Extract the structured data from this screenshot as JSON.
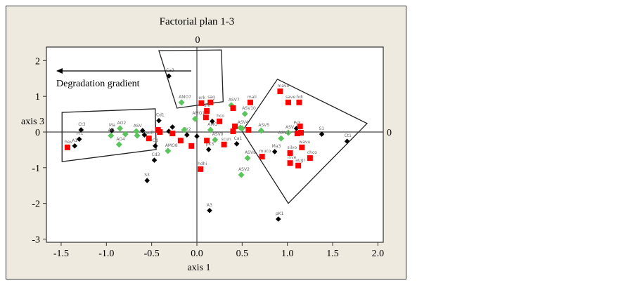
{
  "chart_data": {
    "type": "scatter",
    "title": "Factorial plan 1-3",
    "xlabel": "axis 1",
    "ylabel": "axis 3",
    "xlim": [
      -1.6,
      2.05
    ],
    "ylim": [
      -3.05,
      2.4
    ],
    "xticks": [
      "-1.5",
      "-1.0",
      "-0.5",
      "0.0",
      "0.5",
      "1.0",
      "1.5",
      "2.0"
    ],
    "xtick_values": [
      -1.5,
      -1.0,
      -0.5,
      0.0,
      0.5,
      1.0,
      1.5,
      2.0
    ],
    "yticks": [
      "2",
      "1",
      "0",
      "-1",
      "-2",
      "-3"
    ],
    "ytick_values": [
      2,
      1,
      0,
      -1,
      -2,
      -3
    ],
    "zero_line_labels": {
      "top": "0",
      "right": "0"
    },
    "annotation": "Degradation gradient",
    "colors": {
      "black": "#000000",
      "green": "#5cc45c",
      "red": "#ff0000"
    },
    "series": [
      {
        "name": "black",
        "marker": "diamond",
        "points": [
          {
            "x": -1.28,
            "y": 0.06,
            "label": "Ct3"
          },
          {
            "x": -1.3,
            "y": -0.2,
            "label": "Pr1"
          },
          {
            "x": -1.35,
            "y": -0.39,
            "label": "A1"
          },
          {
            "x": -0.94,
            "y": 0.04,
            "label": "Ma"
          },
          {
            "x": -0.42,
            "y": 0.32,
            "label": "Cd1"
          },
          {
            "x": -0.46,
            "y": -0.39,
            "label": "Cd"
          },
          {
            "x": -0.47,
            "y": -0.79,
            "label": "Cd3"
          },
          {
            "x": -0.55,
            "y": -1.36,
            "label": "S3"
          },
          {
            "x": -0.6,
            "y": 0.04,
            "label": ""
          },
          {
            "x": -0.58,
            "y": -0.08,
            "label": ""
          },
          {
            "x": -0.27,
            "y": 0.14,
            "label": ""
          },
          {
            "x": -0.31,
            "y": 0.02,
            "label": ""
          },
          {
            "x": -0.11,
            "y": -0.08,
            "label": "Pr2"
          },
          {
            "x": 0.0,
            "y": -0.12,
            "label": ""
          },
          {
            "x": 0.13,
            "y": -0.49,
            "label": "pK3"
          },
          {
            "x": 0.17,
            "y": 0.3,
            "label": ""
          },
          {
            "x": -0.31,
            "y": 1.57,
            "label": "Ca3"
          },
          {
            "x": 0.44,
            "y": -0.33,
            "label": "Ca1"
          },
          {
            "x": 0.86,
            "y": -0.55,
            "label": "Ma3"
          },
          {
            "x": 1.1,
            "y": 0.1,
            "label": "Pr3"
          },
          {
            "x": 1.14,
            "y": 0.0,
            "label": ""
          },
          {
            "x": 1.38,
            "y": -0.06,
            "label": "S1"
          },
          {
            "x": 1.66,
            "y": -0.26,
            "label": "Ct1"
          },
          {
            "x": 0.14,
            "y": -2.2,
            "label": "A3"
          },
          {
            "x": 0.9,
            "y": -2.44,
            "label": "pK1"
          }
        ]
      },
      {
        "name": "green",
        "marker": "diamond",
        "points": [
          {
            "x": -0.85,
            "y": 0.1,
            "label": "AO2"
          },
          {
            "x": -0.86,
            "y": -0.35,
            "label": "AO4"
          },
          {
            "x": -0.95,
            "y": -0.1,
            "label": "AO"
          },
          {
            "x": -0.79,
            "y": -0.06,
            "label": ""
          },
          {
            "x": -0.67,
            "y": 0.02,
            "label": "ASV"
          },
          {
            "x": -0.66,
            "y": -0.1,
            "label": ""
          },
          {
            "x": -0.41,
            "y": 0.0,
            "label": ""
          },
          {
            "x": -0.14,
            "y": 0.06,
            "label": ""
          },
          {
            "x": -0.02,
            "y": 0.37,
            "label": "AMO1"
          },
          {
            "x": -0.17,
            "y": 0.83,
            "label": "AMO7"
          },
          {
            "x": -0.32,
            "y": -0.53,
            "label": "AMO8"
          },
          {
            "x": 0.15,
            "y": 0.06,
            "label": "AMO"
          },
          {
            "x": 0.2,
            "y": -0.22,
            "label": "ASV9"
          },
          {
            "x": 0.53,
            "y": 0.51,
            "label": "ASV10"
          },
          {
            "x": 0.71,
            "y": 0.04,
            "label": "ASV5"
          },
          {
            "x": 0.38,
            "y": 0.75,
            "label": "ASV7"
          },
          {
            "x": 0.56,
            "y": -0.73,
            "label": "ASV8"
          },
          {
            "x": 0.49,
            "y": -1.2,
            "label": "ASV2"
          },
          {
            "x": 1.01,
            "y": -0.02,
            "label": "ASV"
          },
          {
            "x": 0.93,
            "y": -0.18,
            "label": "ASV3"
          },
          {
            "x": 0.48,
            "y": 0.12,
            "label": "ASV4"
          },
          {
            "x": 0.5,
            "y": 0.1,
            "label": ""
          }
        ]
      },
      {
        "name": "red",
        "marker": "square",
        "points": [
          {
            "x": -1.43,
            "y": -0.43,
            "label": "hev"
          },
          {
            "x": -0.53,
            "y": -0.18,
            "label": "sofl"
          },
          {
            "x": -0.43,
            "y": 0.06,
            "label": ""
          },
          {
            "x": -0.41,
            "y": 0.0,
            "label": ""
          },
          {
            "x": -0.27,
            "y": -0.04,
            "label": ""
          },
          {
            "x": -0.18,
            "y": -0.24,
            "label": ""
          },
          {
            "x": -0.06,
            "y": -0.39,
            "label": ""
          },
          {
            "x": 0.04,
            "y": -1.04,
            "label": "hdhi"
          },
          {
            "x": 0.15,
            "y": 0.83,
            "label": "sag"
          },
          {
            "x": 0.05,
            "y": 0.81,
            "label": "erk"
          },
          {
            "x": 0.11,
            "y": 0.59,
            "label": "shi"
          },
          {
            "x": 0.1,
            "y": 0.41,
            "label": ""
          },
          {
            "x": 0.25,
            "y": 0.3,
            "label": "hco"
          },
          {
            "x": 0.11,
            "y": -0.24,
            "label": ""
          },
          {
            "x": 0.3,
            "y": -0.35,
            "label": "scun"
          },
          {
            "x": 0.4,
            "y": 0.67,
            "label": ""
          },
          {
            "x": 0.59,
            "y": 0.83,
            "label": "mali"
          },
          {
            "x": 0.57,
            "y": 0.06,
            "label": ""
          },
          {
            "x": 0.42,
            "y": 0.16,
            "label": ""
          },
          {
            "x": 0.4,
            "y": 0.02,
            "label": ""
          },
          {
            "x": 0.72,
            "y": -0.69,
            "label": "muco"
          },
          {
            "x": 0.92,
            "y": 1.14,
            "label": "mavo"
          },
          {
            "x": 1.01,
            "y": 0.83,
            "label": "save"
          },
          {
            "x": 1.13,
            "y": 0.83,
            "label": "hdi"
          },
          {
            "x": 1.14,
            "y": 0.16,
            "label": ""
          },
          {
            "x": 1.11,
            "y": -0.04,
            "label": ""
          },
          {
            "x": 1.15,
            "y": -0.02,
            "label": ""
          },
          {
            "x": 1.16,
            "y": -0.43,
            "label": "wavu"
          },
          {
            "x": 1.03,
            "y": -0.59,
            "label": "silvo"
          },
          {
            "x": 1.25,
            "y": -0.73,
            "label": "chco"
          },
          {
            "x": 1.03,
            "y": -0.87,
            "label": "inve"
          },
          {
            "x": 1.12,
            "y": -0.94,
            "label": "augr"
          }
        ]
      }
    ],
    "groups": [
      {
        "name": "left-group",
        "vertices": [
          [
            -1.49,
            0.55
          ],
          [
            -0.46,
            0.65
          ],
          [
            -0.45,
            -0.49
          ],
          [
            -1.49,
            -0.83
          ]
        ]
      },
      {
        "name": "top-group",
        "vertices": [
          [
            -0.42,
            2.28
          ],
          [
            0.27,
            2.3
          ],
          [
            0.29,
            0.85
          ],
          [
            -0.22,
            0.67
          ]
        ]
      },
      {
        "name": "right-group",
        "vertices": [
          [
            0.89,
            1.48
          ],
          [
            1.88,
            0.24
          ],
          [
            1.01,
            -2.0
          ],
          [
            0.5,
            0.02
          ]
        ]
      }
    ]
  }
}
